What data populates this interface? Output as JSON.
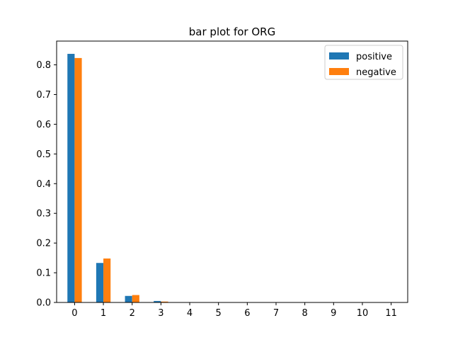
{
  "chart_data": {
    "type": "bar",
    "title": "bar plot for ORG",
    "xlabel": "",
    "ylabel": "",
    "categories": [
      "0",
      "1",
      "2",
      "3",
      "4",
      "5",
      "6",
      "7",
      "8",
      "9",
      "10",
      "11"
    ],
    "series": [
      {
        "name": "positive",
        "color": "#1f77b4",
        "values": [
          0.837,
          0.133,
          0.022,
          0.005,
          0,
          0,
          0,
          0,
          0,
          0,
          0,
          0
        ]
      },
      {
        "name": "negative",
        "color": "#ff7f0e",
        "values": [
          0.823,
          0.148,
          0.025,
          0.003,
          0,
          0,
          0,
          0,
          0,
          0,
          0,
          0
        ]
      }
    ],
    "ylim": [
      0,
      0.88
    ],
    "yticks": [
      "0.0",
      "0.1",
      "0.2",
      "0.3",
      "0.4",
      "0.5",
      "0.6",
      "0.7",
      "0.8"
    ],
    "grid": false,
    "legend_position": "top-right"
  }
}
